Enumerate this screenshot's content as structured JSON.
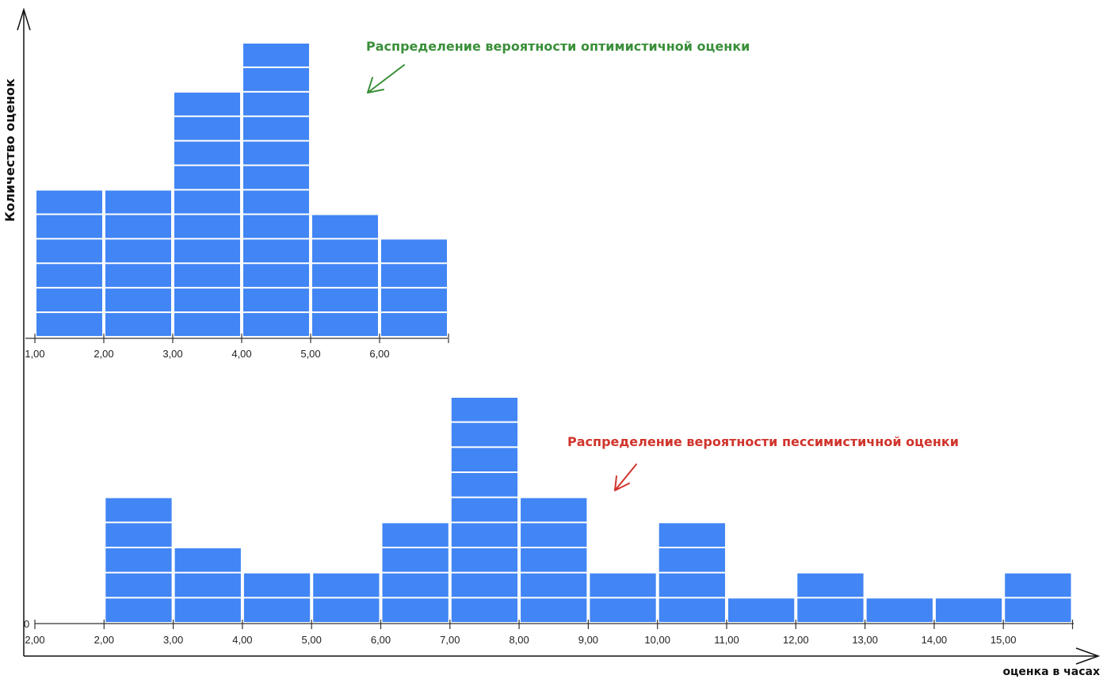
{
  "axes": {
    "ylabel": "Количество оценок",
    "xlabel": "оценка в часах"
  },
  "chart_data": [
    {
      "type": "bar",
      "title": "Распределение вероятности оптимистичной оценки",
      "title_color": "#3a8f3a",
      "bar_color": "#4285f4",
      "categories": [
        "1,00",
        "2,00",
        "3,00",
        "4,00",
        "5,00",
        "6,00"
      ],
      "values": [
        6,
        6,
        10,
        12,
        5,
        4
      ],
      "xlabel": "",
      "ylabel": "",
      "ylim": [
        0,
        12
      ]
    },
    {
      "type": "bar",
      "title": "Распределение вероятности пессимистичной оценки",
      "title_color": "#d0342c",
      "bar_color": "#4285f4",
      "zero_label": "0",
      "categories": [
        "2,00",
        "2,00",
        "3,00",
        "4,00",
        "5,00",
        "6,00",
        "7,00",
        "8,00",
        "9,00",
        "10,00",
        "11,00",
        "12,00",
        "13,00",
        "14,00",
        "15,00"
      ],
      "values": [
        0,
        5,
        3,
        2,
        2,
        4,
        9,
        5,
        2,
        4,
        1,
        2,
        1,
        1,
        2
      ],
      "xlabel": "",
      "ylabel": "",
      "ylim": [
        0,
        9
      ]
    }
  ]
}
